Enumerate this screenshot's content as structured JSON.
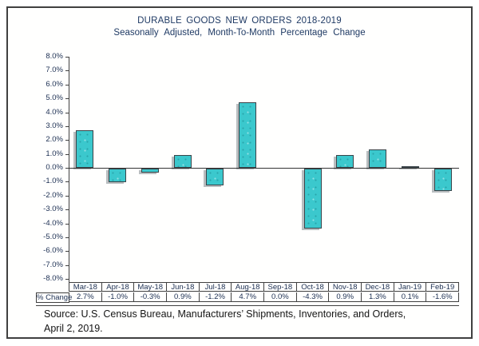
{
  "chart": {
    "title": "DURABLE GOODS NEW ORDERS 2018-2019",
    "subtitle": "Seasonally Adjusted,  Month-To-Month  Percentage Change"
  },
  "chart_data": {
    "type": "bar",
    "categories": [
      "Mar-18",
      "Apr-18",
      "May-18",
      "Jun-18",
      "Jul-18",
      "Aug-18",
      "Sep-18",
      "Oct-18",
      "Nov-18",
      "Dec-18",
      "Jan-19",
      "Feb-19"
    ],
    "values": [
      2.7,
      -1.0,
      -0.3,
      0.9,
      -1.2,
      4.7,
      0.0,
      -4.3,
      0.9,
      1.3,
      0.1,
      -1.6
    ],
    "title": "DURABLE GOODS NEW ORDERS 2018-2019",
    "subtitle": "Seasonally Adjusted,  Month-To-Month  Percentage Change",
    "xlabel": "",
    "ylabel": "",
    "ylim": [
      -8,
      8
    ],
    "ytick_step": 1.0,
    "ytick_labels": [
      "8.0%",
      "7.0%",
      "6.0%",
      "5.0%",
      "4.0%",
      "3.0%",
      "2.0%",
      "1.0%",
      "0.0%",
      "-1.0%",
      "-2.0%",
      "-3.0%",
      "-4.0%",
      "-5.0%",
      "-6.0%",
      "-7.0%",
      "-8.0%"
    ],
    "grid": false,
    "legend": false,
    "bar_color": "#3bc8cd",
    "bar_border_color": "#3a4449",
    "table_row_label": "% Change",
    "table_values": [
      "2.7%",
      "-1.0%",
      "-0.3%",
      "0.9%",
      "-1.2%",
      "4.7%",
      "0.0%",
      "-4.3%",
      "0.9%",
      "1.3%",
      "0.1%",
      "-1.6%"
    ]
  },
  "source": {
    "line1": "Source: U.S. Census Bureau, Manufacturers’ Shipments, Inventories, and Orders,",
    "line2": "April 2, 2019."
  }
}
